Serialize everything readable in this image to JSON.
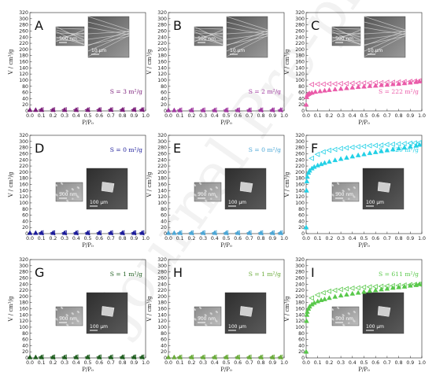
{
  "watermark_text": "Journal Pre-proof",
  "axis": {
    "ylabel": "V / cm³/g",
    "xlabel": "P/P₀",
    "x_ticks": [
      "0.0",
      "0.1",
      "0.2",
      "0.3",
      "0.4",
      "0.5",
      "0.6",
      "0.7",
      "0.8",
      "0.9",
      "1.0"
    ],
    "y_ticks": [
      "0",
      "20",
      "40",
      "60",
      "80",
      "100",
      "120",
      "140",
      "160",
      "180",
      "200",
      "220",
      "240",
      "260",
      "280",
      "300",
      "320"
    ]
  },
  "chart_data": [
    {
      "panel": "A",
      "type": "scatter",
      "color": "#7b1e7a",
      "surface_area": "S = 3 m²/g",
      "xlim": [
        0,
        1
      ],
      "ylim": [
        0,
        320
      ],
      "grid": false,
      "adsorption": {
        "x": [
          0.0,
          0.05,
          0.1,
          0.2,
          0.3,
          0.4,
          0.5,
          0.6,
          0.7,
          0.8,
          0.9,
          0.97
        ],
        "y": [
          3,
          3,
          3,
          3,
          3,
          3,
          3,
          3.5,
          3.5,
          3.5,
          4,
          4
        ]
      },
      "desorption": {
        "x": [
          0.97,
          0.9,
          0.8,
          0.7,
          0.6,
          0.5,
          0.4,
          0.3,
          0.2,
          0.1
        ],
        "y": [
          4,
          4,
          4,
          4,
          4,
          4,
          4,
          4,
          4,
          4
        ]
      },
      "insets": [
        {
          "scale": "500 nm",
          "tone": "fiber"
        },
        {
          "scale": "10 µm",
          "tone": "fiber"
        }
      ]
    },
    {
      "panel": "B",
      "type": "scatter",
      "color": "#a03aa0",
      "surface_area": "S = 2 m²/g",
      "xlim": [
        0,
        1
      ],
      "ylim": [
        0,
        320
      ],
      "grid": false,
      "adsorption": {
        "x": [
          0.0,
          0.05,
          0.1,
          0.2,
          0.3,
          0.4,
          0.5,
          0.6,
          0.7,
          0.8,
          0.9,
          0.97
        ],
        "y": [
          2,
          2,
          2,
          2,
          2,
          2,
          2,
          2.5,
          2.5,
          3,
          3,
          3
        ]
      },
      "desorption": {
        "x": [
          0.97,
          0.9,
          0.8,
          0.7,
          0.6,
          0.5,
          0.4,
          0.3,
          0.2,
          0.1
        ],
        "y": [
          3,
          3,
          3,
          3,
          3,
          3,
          3,
          3,
          3,
          3
        ]
      },
      "insets": [
        {
          "scale": "500 nm",
          "tone": "fiber"
        },
        {
          "scale": "10 µm",
          "tone": "fiber"
        }
      ]
    },
    {
      "panel": "C",
      "type": "scatter",
      "color": "#ea5aa8",
      "surface_area": "S = 222 m²/g",
      "xlim": [
        0,
        1
      ],
      "ylim": [
        0,
        320
      ],
      "grid": false,
      "adsorption": {
        "x": [
          0.0,
          0.005,
          0.01,
          0.02,
          0.03,
          0.05,
          0.08,
          0.12,
          0.16,
          0.2,
          0.25,
          0.3,
          0.35,
          0.4,
          0.45,
          0.5,
          0.55,
          0.6,
          0.65,
          0.7,
          0.75,
          0.8,
          0.85,
          0.9,
          0.95,
          0.98
        ],
        "y": [
          20,
          45,
          52,
          55,
          57,
          59,
          62,
          64,
          66,
          68,
          70,
          72,
          74,
          76,
          78,
          79,
          81,
          82,
          84,
          85,
          87,
          88,
          90,
          92,
          94,
          96
        ]
      },
      "desorption": {
        "x": [
          0.98,
          0.94,
          0.9,
          0.85,
          0.8,
          0.75,
          0.7,
          0.65,
          0.6,
          0.55,
          0.5,
          0.45,
          0.4,
          0.35,
          0.3,
          0.25,
          0.2,
          0.15,
          0.1,
          0.05
        ],
        "y": [
          98,
          97,
          96,
          95,
          94,
          93,
          93,
          92,
          92,
          91,
          91,
          90,
          90,
          89,
          89,
          88,
          88,
          87,
          87,
          86
        ]
      },
      "insets": [
        {
          "scale": "500 nm",
          "tone": "fiber"
        },
        {
          "scale": "10 µm",
          "tone": "fiber"
        }
      ]
    },
    {
      "panel": "D",
      "type": "scatter",
      "color": "#1a1a9a",
      "surface_area": "S = 0 m²/g",
      "xlim": [
        0,
        1
      ],
      "ylim": [
        0,
        320
      ],
      "grid": false,
      "adsorption": {
        "x": [
          0.0,
          0.05,
          0.1,
          0.2,
          0.3,
          0.4,
          0.5,
          0.6,
          0.7,
          0.8,
          0.9,
          0.97
        ],
        "y": [
          2,
          2,
          2,
          2,
          2,
          2,
          2,
          2,
          2,
          2,
          2,
          2
        ]
      },
      "desorption": {
        "x": [
          0.97,
          0.9,
          0.8,
          0.7,
          0.6,
          0.5,
          0.4,
          0.3,
          0.2,
          0.1
        ],
        "y": [
          2.5,
          2.5,
          2.5,
          2.5,
          2.5,
          2.5,
          2.5,
          2.5,
          2.5,
          2.5
        ]
      },
      "insets": [
        {
          "scale": "500 nm",
          "tone": "grain"
        },
        {
          "scale": "100 µm",
          "tone": "flake"
        }
      ]
    },
    {
      "panel": "E",
      "type": "scatter",
      "color": "#4aa6d6",
      "surface_area": "S = 0 m²/g",
      "xlim": [
        0,
        1
      ],
      "ylim": [
        0,
        320
      ],
      "grid": false,
      "adsorption": {
        "x": [
          0.0,
          0.05,
          0.1,
          0.2,
          0.3,
          0.4,
          0.5,
          0.6,
          0.7,
          0.8,
          0.9,
          0.97
        ],
        "y": [
          2,
          2,
          2,
          2,
          2,
          2,
          2,
          2,
          2,
          2,
          2,
          2
        ]
      },
      "desorption": {
        "x": [
          0.97,
          0.9,
          0.8,
          0.7,
          0.6,
          0.5,
          0.4,
          0.3,
          0.2,
          0.1
        ],
        "y": [
          2.5,
          2.5,
          2.5,
          2.5,
          2.5,
          2.5,
          2.5,
          2.5,
          2.5,
          2.5
        ]
      },
      "insets": [
        {
          "scale": "500 nm",
          "tone": "grain"
        },
        {
          "scale": "100 µm",
          "tone": "flake"
        }
      ]
    },
    {
      "panel": "F",
      "type": "scatter",
      "color": "#22d0e6",
      "surface_area": "S = 729 m²/g",
      "xlim": [
        0,
        1
      ],
      "ylim": [
        0,
        320
      ],
      "grid": false,
      "adsorption": {
        "x": [
          0.0,
          0.003,
          0.006,
          0.01,
          0.02,
          0.03,
          0.05,
          0.07,
          0.1,
          0.13,
          0.16,
          0.2,
          0.25,
          0.3,
          0.35,
          0.4,
          0.45,
          0.5,
          0.55,
          0.6,
          0.65,
          0.7,
          0.75,
          0.8,
          0.85,
          0.9,
          0.95,
          0.98
        ],
        "y": [
          20,
          140,
          170,
          185,
          198,
          205,
          212,
          217,
          222,
          226,
          230,
          234,
          239,
          243,
          247,
          251,
          255,
          258,
          262,
          265,
          268,
          271,
          274,
          277,
          280,
          283,
          286,
          289
        ]
      },
      "desorption": {
        "x": [
          0.98,
          0.94,
          0.9,
          0.85,
          0.8,
          0.75,
          0.7,
          0.65,
          0.6,
          0.55,
          0.5,
          0.45,
          0.4,
          0.35,
          0.3,
          0.25,
          0.2,
          0.15,
          0.1,
          0.05
        ],
        "y": [
          296,
          295,
          294,
          293,
          292,
          291,
          290,
          288,
          287,
          286,
          284,
          283,
          281,
          279,
          277,
          274,
          271,
          266,
          258,
          245
        ]
      },
      "insets": [
        {
          "scale": "500 nm",
          "tone": "grain"
        },
        {
          "scale": "100 µm",
          "tone": "flake"
        }
      ]
    },
    {
      "panel": "G",
      "type": "scatter",
      "color": "#1f5e1f",
      "surface_area": "S = 1 m²/g",
      "xlim": [
        0,
        1
      ],
      "ylim": [
        0,
        320
      ],
      "grid": false,
      "adsorption": {
        "x": [
          0.0,
          0.05,
          0.1,
          0.2,
          0.3,
          0.4,
          0.5,
          0.6,
          0.7,
          0.8,
          0.9,
          0.97
        ],
        "y": [
          2,
          2,
          2,
          2,
          2,
          2,
          2,
          2,
          2,
          2.5,
          2.5,
          2.5
        ]
      },
      "desorption": {
        "x": [
          0.97,
          0.9,
          0.8,
          0.7,
          0.6,
          0.5,
          0.4,
          0.3,
          0.2,
          0.1
        ],
        "y": [
          3,
          3,
          3,
          3,
          3,
          3,
          3,
          3,
          3,
          3
        ]
      },
      "insets": [
        {
          "scale": "500 nm",
          "tone": "grain"
        },
        {
          "scale": "100 µm",
          "tone": "flake"
        }
      ]
    },
    {
      "panel": "H",
      "type": "scatter",
      "color": "#6aab3a",
      "surface_area": "S = 1 m²/g",
      "xlim": [
        0,
        1
      ],
      "ylim": [
        0,
        320
      ],
      "grid": false,
      "adsorption": {
        "x": [
          0.0,
          0.05,
          0.1,
          0.2,
          0.3,
          0.4,
          0.5,
          0.6,
          0.7,
          0.8,
          0.9,
          0.97
        ],
        "y": [
          2,
          2,
          2,
          2,
          2,
          2,
          2,
          2,
          2,
          2,
          2,
          2
        ]
      },
      "desorption": {
        "x": [
          0.97,
          0.9,
          0.8,
          0.7,
          0.6,
          0.5,
          0.4,
          0.3,
          0.2,
          0.1
        ],
        "y": [
          2.5,
          2.5,
          2.5,
          2.5,
          2.5,
          2.5,
          2.5,
          2.5,
          2.5,
          2.5
        ]
      },
      "insets": [
        {
          "scale": "500 nm",
          "tone": "grain"
        },
        {
          "scale": "100 µm",
          "tone": "flake"
        }
      ]
    },
    {
      "panel": "I",
      "type": "scatter",
      "color": "#58c84a",
      "surface_area": "S = 611 m²/g",
      "xlim": [
        0,
        1
      ],
      "ylim": [
        0,
        320
      ],
      "grid": false,
      "adsorption": {
        "x": [
          0.0,
          0.003,
          0.006,
          0.01,
          0.02,
          0.03,
          0.05,
          0.07,
          0.1,
          0.13,
          0.16,
          0.2,
          0.25,
          0.3,
          0.35,
          0.4,
          0.45,
          0.5,
          0.55,
          0.6,
          0.65,
          0.7,
          0.75,
          0.8,
          0.85,
          0.9,
          0.95,
          0.98
        ],
        "y": [
          20,
          120,
          140,
          150,
          160,
          167,
          174,
          179,
          184,
          188,
          191,
          195,
          199,
          203,
          206,
          209,
          212,
          215,
          218,
          220,
          223,
          225,
          228,
          230,
          232,
          235,
          237,
          240
        ]
      },
      "desorption": {
        "x": [
          0.98,
          0.94,
          0.9,
          0.85,
          0.8,
          0.75,
          0.7,
          0.65,
          0.6,
          0.55,
          0.5,
          0.45,
          0.4,
          0.35,
          0.3,
          0.25,
          0.2,
          0.15,
          0.1,
          0.05
        ],
        "y": [
          240,
          239,
          238,
          237,
          236,
          235,
          234,
          233,
          232,
          231,
          230,
          228,
          227,
          225,
          223,
          220,
          217,
          212,
          205,
          195
        ]
      },
      "insets": [
        {
          "scale": "500 nm",
          "tone": "grain"
        },
        {
          "scale": "100 µm",
          "tone": "flake"
        }
      ]
    }
  ]
}
